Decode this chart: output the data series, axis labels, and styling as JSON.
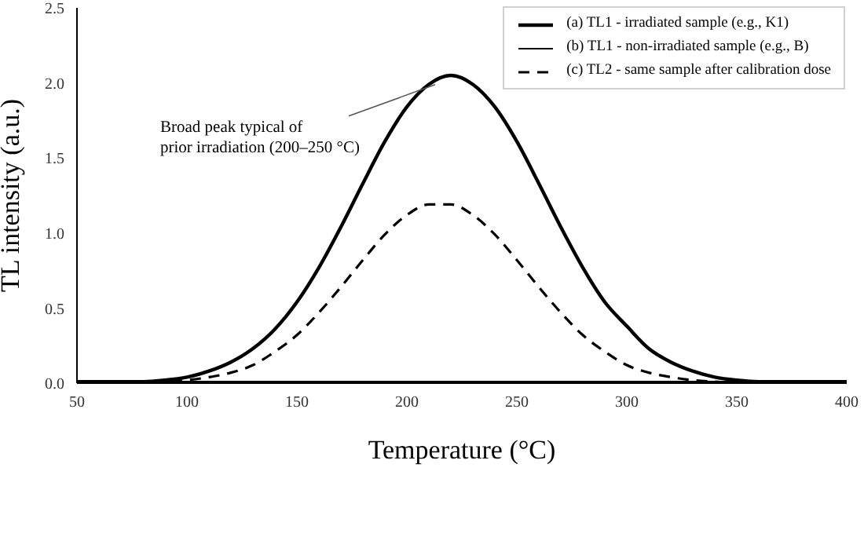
{
  "chart_data": {
    "type": "line",
    "xlabel": "Temperature (°C)",
    "ylabel": "TL intensity (a.u.)",
    "x": [
      50,
      60,
      70,
      80,
      90,
      100,
      110,
      120,
      130,
      140,
      150,
      160,
      170,
      180,
      190,
      200,
      210,
      220,
      230,
      240,
      250,
      260,
      270,
      280,
      290,
      300,
      310,
      320,
      330,
      340,
      350,
      360,
      370,
      380,
      390,
      400
    ],
    "series": [
      {
        "name": "(a) TL1 - irradiated sample (e.g., K1)",
        "color": "#000000",
        "line_style": "solid",
        "values": [
          0.01,
          0.01,
          0.01,
          0.01,
          0.02,
          0.04,
          0.08,
          0.14,
          0.23,
          0.36,
          0.54,
          0.77,
          1.04,
          1.33,
          1.61,
          1.84,
          1.99,
          2.05,
          1.99,
          1.84,
          1.61,
          1.33,
          1.04,
          0.77,
          0.54,
          0.38,
          0.23,
          0.14,
          0.08,
          0.04,
          0.02,
          0.01,
          0.01,
          0.01,
          0.01,
          0.01
        ]
      },
      {
        "name": "(b) TL1 - non-irradiated sample (e.g., B)",
        "color": "#000000",
        "line_style": "solid",
        "values": [
          0.01,
          0.01,
          0.01,
          0.01,
          0.01,
          0.01,
          0.01,
          0.01,
          0.01,
          0.01,
          0.01,
          0.01,
          0.01,
          0.01,
          0.01,
          0.01,
          0.01,
          0.01,
          0.01,
          0.01,
          0.01,
          0.01,
          0.01,
          0.01,
          0.01,
          0.01,
          0.01,
          0.01,
          0.01,
          0.01,
          0.01,
          0.01,
          0.01,
          0.01,
          0.01,
          0.01
        ]
      },
      {
        "name": "(c) TL2 - same sample after calibration dose",
        "color": "#000000",
        "line_style": "dashed",
        "values": [
          0,
          0,
          0,
          0,
          0.01,
          0.02,
          0.04,
          0.07,
          0.12,
          0.21,
          0.32,
          0.47,
          0.64,
          0.82,
          0.99,
          1.12,
          1.19,
          1.19,
          1.12,
          0.99,
          0.82,
          0.64,
          0.47,
          0.32,
          0.21,
          0.12,
          0.07,
          0.04,
          0.02,
          0.01,
          0,
          0,
          0,
          0,
          0,
          0
        ]
      }
    ],
    "xlim": [
      50,
      400
    ],
    "xticks": [
      50,
      100,
      150,
      200,
      250,
      300,
      350,
      400
    ],
    "ylim": [
      0,
      2.5
    ],
    "yticks": [
      {
        "value": 0,
        "label": "0.0"
      },
      0.5,
      {
        "value": 1,
        "label": "1.0"
      },
      1.5,
      {
        "value": 2,
        "label": "2.0"
      },
      2.5
    ],
    "annotations": [
      {
        "text": "Broad peak typical of prior irradiation (200–250 °C)",
        "x": 215,
        "y": 2.02
      }
    ],
    "legend": "top right",
    "marker": "none",
    "grid": false
  }
}
